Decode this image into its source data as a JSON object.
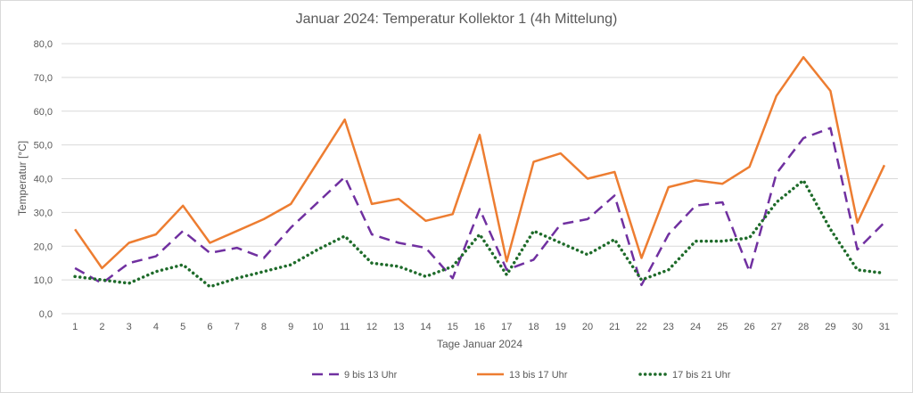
{
  "chart_data": {
    "type": "line",
    "title": "Januar 2024: Temperatur Kollektor 1 (4h Mittelung)",
    "xlabel": "Tage Januar 2024",
    "ylabel": "Temperatur [°C]",
    "ylim": [
      0,
      80
    ],
    "yticks": [
      "0,0",
      "10,0",
      "20,0",
      "30,0",
      "40,0",
      "50,0",
      "60,0",
      "70,0",
      "80,0"
    ],
    "grid": true,
    "legend_position": "bottom",
    "categories": [
      "1",
      "2",
      "3",
      "4",
      "5",
      "6",
      "7",
      "8",
      "9",
      "10",
      "11",
      "12",
      "13",
      "14",
      "15",
      "16",
      "17",
      "18",
      "19",
      "20",
      "21",
      "22",
      "23",
      "24",
      "25",
      "26",
      "27",
      "28",
      "29",
      "30",
      "31"
    ],
    "series": [
      {
        "name": "9 bis 13 Uhr",
        "color": "#7030a0",
        "style": "dashed",
        "values": [
          13.5,
          9.0,
          15.0,
          17.0,
          24.5,
          18.0,
          19.5,
          16.5,
          25.5,
          33.0,
          40.5,
          23.5,
          21.0,
          19.5,
          10.5,
          31.0,
          13.0,
          16.0,
          26.5,
          28.0,
          35.0,
          8.5,
          23.5,
          32.0,
          33.0,
          12.5,
          41.5,
          52.0,
          55.0,
          19.0,
          27.0
        ]
      },
      {
        "name": "13 bis 17 Uhr",
        "color": "#ed7d31",
        "style": "solid",
        "values": [
          25.0,
          13.5,
          21.0,
          23.5,
          32.0,
          21.0,
          24.5,
          28.0,
          32.5,
          45.0,
          57.5,
          32.5,
          34.0,
          27.5,
          29.5,
          53.0,
          15.5,
          45.0,
          47.5,
          40.0,
          42.0,
          16.5,
          37.5,
          39.5,
          38.5,
          43.5,
          64.5,
          76.0,
          66.0,
          27.0,
          44.0
        ]
      },
      {
        "name": "17 bis 21 Uhr",
        "color": "#1e6b2a",
        "style": "dotted",
        "values": [
          11.0,
          10.0,
          9.0,
          12.5,
          14.5,
          8.0,
          10.5,
          12.5,
          14.5,
          19.0,
          23.0,
          15.0,
          14.0,
          11.0,
          14.0,
          23.5,
          11.5,
          24.5,
          21.0,
          17.5,
          22.0,
          10.0,
          13.0,
          21.5,
          21.5,
          22.5,
          33.0,
          39.5,
          25.0,
          13.0,
          12.0
        ]
      }
    ]
  }
}
